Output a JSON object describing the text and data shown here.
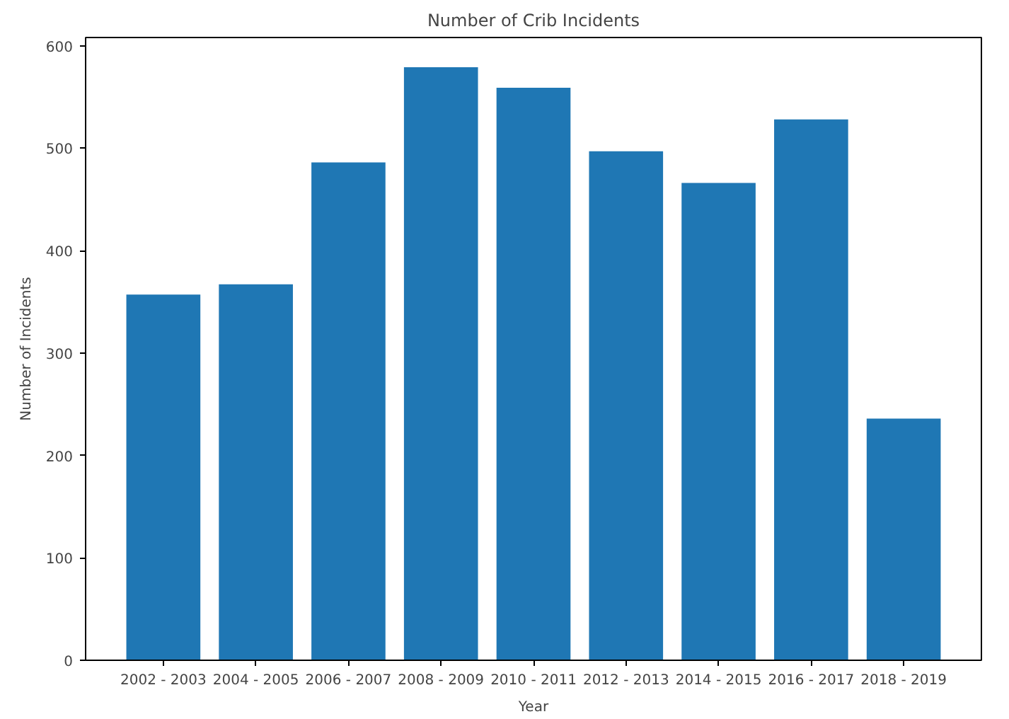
{
  "chart_data": {
    "type": "bar",
    "title": "Number of Crib Incidents",
    "xlabel": "Year",
    "ylabel": "Number of Incidents",
    "categories": [
      "2002 - 2003",
      "2004 - 2005",
      "2006 - 2007",
      "2008 - 2009",
      "2010 - 2011",
      "2012 - 2013",
      "2014 - 2015",
      "2016 - 2017",
      "2018 - 2019"
    ],
    "values": [
      357,
      367,
      486,
      579,
      559,
      497,
      466,
      528,
      236
    ],
    "color": "#1f77b4",
    "ylim": [
      0,
      608
    ],
    "yticks": [
      0,
      100,
      200,
      300,
      400,
      500,
      600
    ],
    "grid": false
  }
}
